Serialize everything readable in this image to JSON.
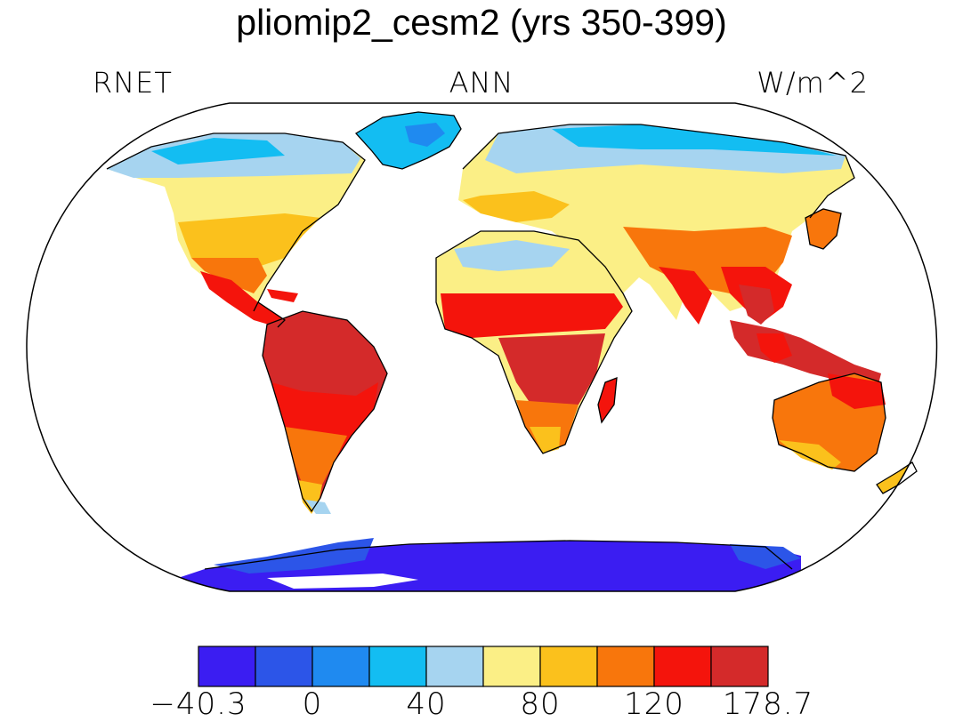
{
  "title": "pliomip2_cesm2 (yrs 350-399)",
  "left_label": "RNET",
  "center_label": "ANN",
  "right_label": "W/m^2",
  "colorbar": {
    "colors": [
      "#3b1df2",
      "#2c55e8",
      "#1f8af0",
      "#13bdf2",
      "#a6d4f0",
      "#fbef86",
      "#fbc11c",
      "#f8760c",
      "#f4140c",
      "#d42a2a"
    ],
    "labels": [
      "−40.3",
      "0",
      "40",
      "80",
      "120",
      "178.7"
    ]
  },
  "map_colors": {
    "ocean": "#ffffff",
    "coast": "#000000",
    "frame": "#000000"
  }
}
